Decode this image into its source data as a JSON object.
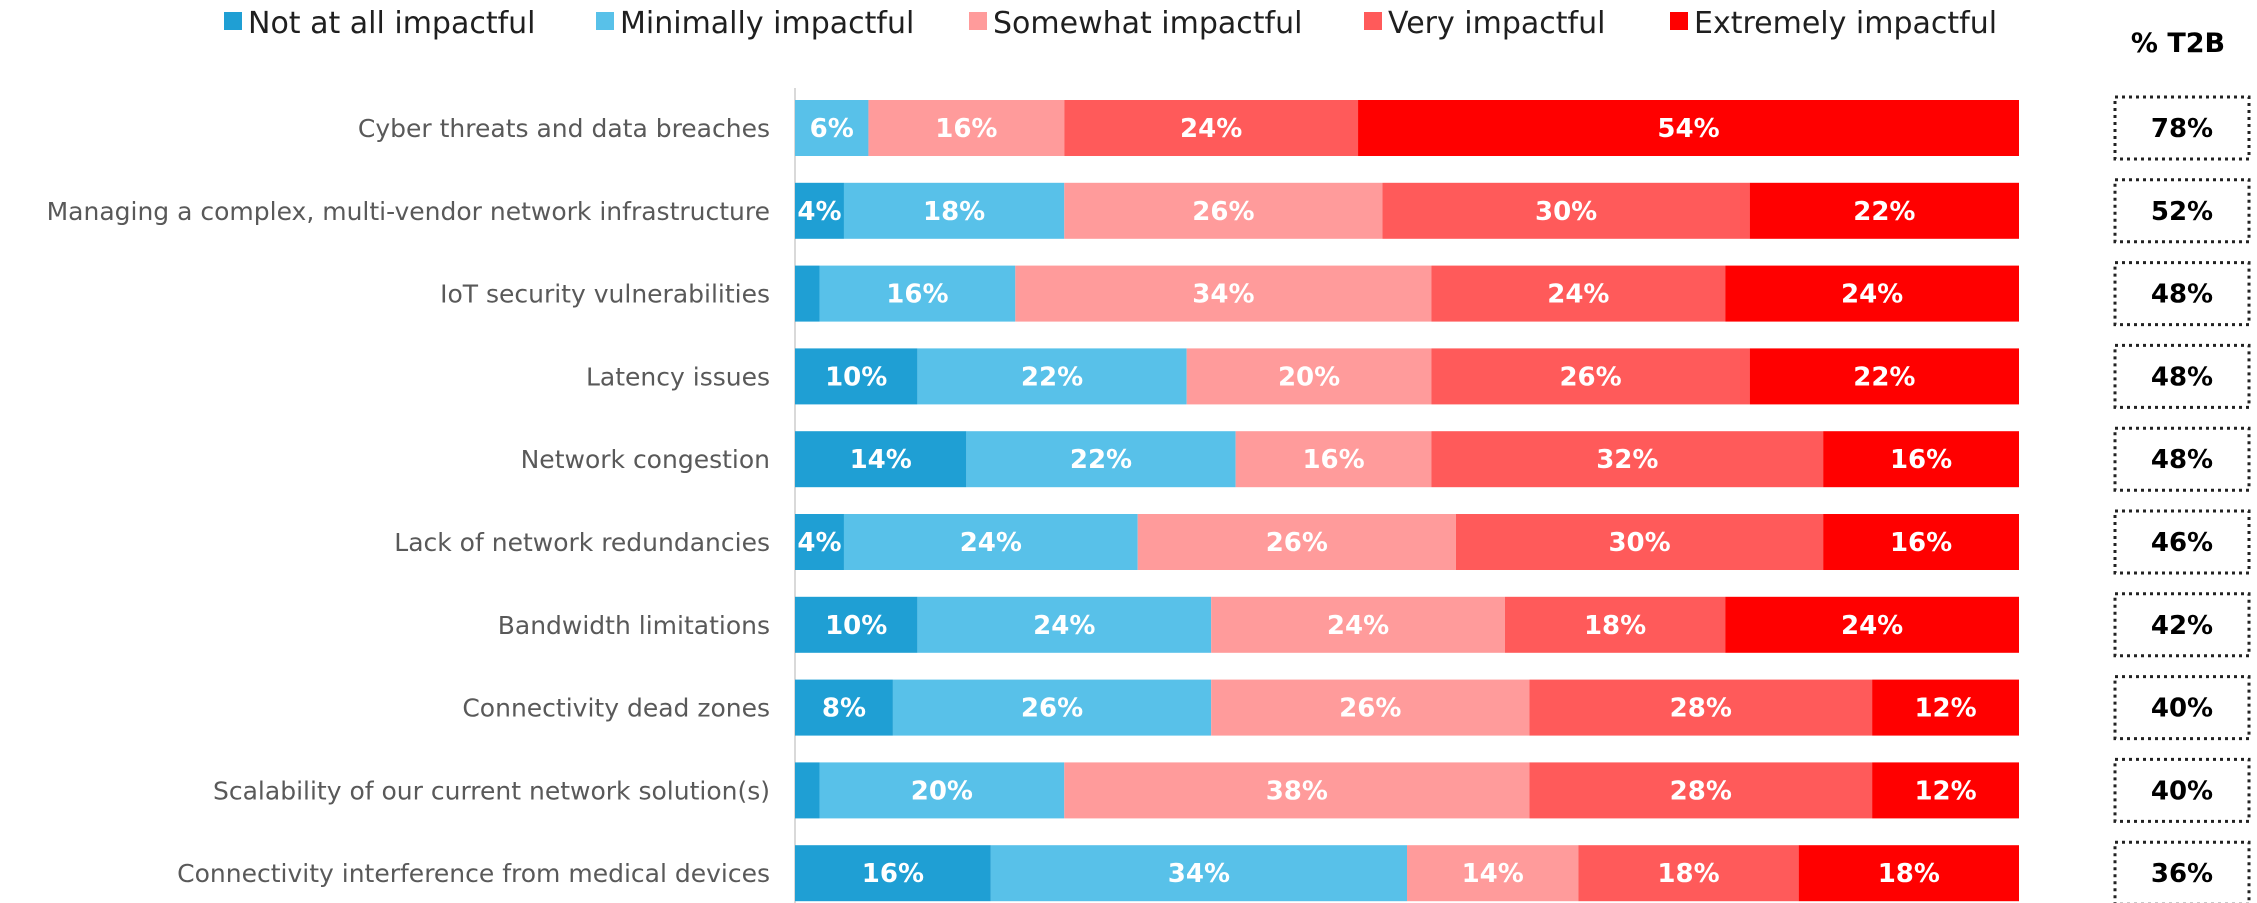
{
  "chart_data": {
    "type": "bar",
    "orientation": "horizontal",
    "stacked": true,
    "percent_stacked": true,
    "xlim": [
      0,
      100
    ],
    "legend_position": "top",
    "categories": [
      "Cyber threats and data breaches",
      "Managing a complex, multi-vendor network infrastructure",
      "IoT security vulnerabilities",
      "Latency issues",
      "Network congestion",
      "Lack of network redundancies",
      "Bandwidth limitations",
      "Connectivity dead zones",
      "Scalability of our current network solution(s)",
      "Connectivity interference from medical devices"
    ],
    "series": [
      {
        "name": "Not at all impactful",
        "color": "#1f9fd4",
        "values": [
          0,
          4,
          2,
          10,
          14,
          4,
          10,
          8,
          2,
          16
        ],
        "labels": [
          "",
          "4%",
          "",
          "10%",
          "14%",
          "4%",
          "10%",
          "8%",
          "",
          "16%"
        ]
      },
      {
        "name": "Minimally impactful",
        "color": "#58c1e9",
        "values": [
          6,
          18,
          16,
          22,
          22,
          24,
          24,
          26,
          20,
          34
        ],
        "labels": [
          "6%",
          "18%",
          "16%",
          "22%",
          "22%",
          "24%",
          "24%",
          "26%",
          "20%",
          "34%"
        ]
      },
      {
        "name": "Somewhat impactful",
        "color": "#ff9b9b",
        "values": [
          16,
          26,
          34,
          20,
          16,
          26,
          24,
          26,
          38,
          14
        ],
        "labels": [
          "16%",
          "26%",
          "34%",
          "20%",
          "16%",
          "26%",
          "24%",
          "26%",
          "38%",
          "14%"
        ]
      },
      {
        "name": "Very impactful",
        "color": "#ff5a5a",
        "values": [
          24,
          30,
          24,
          26,
          32,
          30,
          18,
          28,
          28,
          18
        ],
        "labels": [
          "24%",
          "30%",
          "24%",
          "26%",
          "32%",
          "30%",
          "18%",
          "28%",
          "28%",
          "18%"
        ]
      },
      {
        "name": "Extremely impactful",
        "color": "#ff0000",
        "values": [
          54,
          22,
          24,
          22,
          16,
          16,
          24,
          12,
          12,
          18
        ],
        "labels": [
          "54%",
          "22%",
          "24%",
          "22%",
          "16%",
          "16%",
          "24%",
          "12%",
          "12%",
          "18%"
        ]
      }
    ],
    "t2b_header": "% T2B",
    "t2b_values": [
      "78%",
      "52%",
      "48%",
      "48%",
      "48%",
      "46%",
      "42%",
      "40%",
      "40%",
      "36%"
    ]
  }
}
